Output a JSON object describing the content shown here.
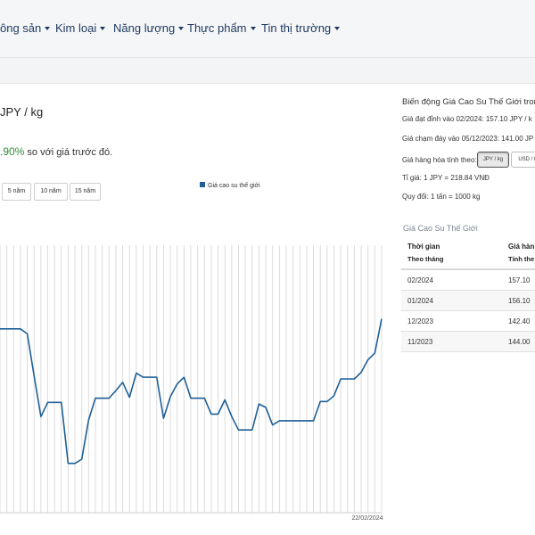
{
  "nav": {
    "items": [
      {
        "label": "ông sản"
      },
      {
        "label": "Kim loại"
      },
      {
        "label": "Năng lượng"
      },
      {
        "label": "Thực phẩm"
      },
      {
        "label": "Tin thị trường"
      }
    ]
  },
  "summary": {
    "unit_text": "JPY / kg",
    "change_pct": ".90%",
    "change_text": " so với giá trước đó.",
    "change_color": "#2e8b3a"
  },
  "range_buttons": [
    "5 năm",
    "10 năm",
    "15 năm"
  ],
  "right_panel": {
    "title": "Biến động Giá Cao Su Thế Giới trong",
    "peak": "Giá đạt đỉnh vào 02/2024: 157.10 JPY / k",
    "bottom": "Giá chạm đáy vào 05/12/2023: 141.00 JP",
    "unit_label": "Giá hàng hóa tính theo:",
    "unit_options": [
      "JPY / kg",
      "USD / t"
    ],
    "rate": "Tỉ giá: 1 JPY = 218.84 VNĐ",
    "convert": "Quy đổi: 1 tấn = 1000 kg"
  },
  "table": {
    "title": "Giá Cao Su Thế Giới",
    "headers": {
      "time": "Thời gian",
      "time_sub": "Theo tháng",
      "price": "Giá hàn",
      "price_sub": "Tính the"
    },
    "rows": [
      {
        "month": "02/2024",
        "price": "157.10"
      },
      {
        "month": "01/2024",
        "price": "156.10"
      },
      {
        "month": "12/2023",
        "price": "142.40"
      },
      {
        "month": "11/2023",
        "price": "144.00"
      }
    ]
  },
  "colors": {
    "accent": "#1f5f96",
    "nav_text": "#1f3a63"
  },
  "chart_data": {
    "type": "line",
    "legend": "Giá cao su thế giới",
    "x_visible_label": "22/02/2024",
    "grid": true,
    "series": [
      {
        "name": "Giá cao su thế giới",
        "values": [
          150.0,
          150.0,
          150.0,
          150.0,
          149.4,
          144.4,
          139.5,
          141.2,
          141.2,
          141.2,
          133.9,
          133.9,
          134.4,
          139.1,
          141.7,
          141.7,
          141.7,
          142.6,
          143.6,
          141.8,
          144.7,
          144.2,
          144.2,
          144.2,
          139.3,
          141.9,
          143.4,
          144.2,
          141.7,
          141.7,
          141.7,
          139.8,
          139.8,
          141.5,
          139.5,
          137.9,
          137.9,
          137.9,
          141.0,
          140.6,
          138.5,
          139.0,
          139.0,
          139.0,
          139.0,
          139.0,
          139.0,
          141.3,
          141.3,
          142.0,
          144.0,
          144.0,
          144.0,
          144.8,
          146.3,
          147.1,
          151.2
        ]
      }
    ],
    "ylim": [
      128,
      160
    ]
  }
}
